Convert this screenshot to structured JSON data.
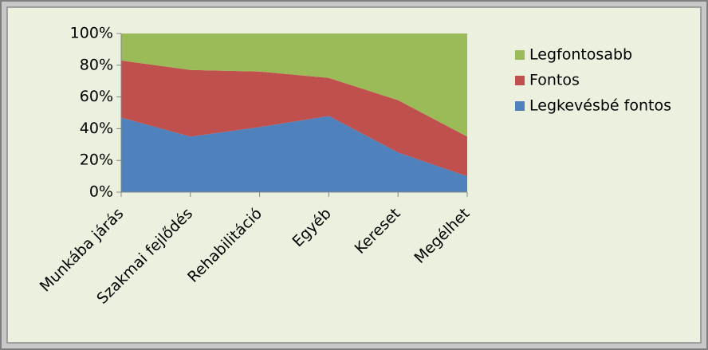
{
  "chart_data": {
    "type": "stacked_area_100",
    "categories": [
      "Munkába járás",
      "Szakmai fejlődés",
      "Rehabilitáció",
      "Egyéb",
      "Kereset",
      "Megélhet"
    ],
    "series": [
      {
        "name": "Legkevésbé fontos",
        "color": "#4f81bd",
        "values": [
          47,
          35,
          41,
          48,
          25,
          10
        ]
      },
      {
        "name": "Fontos",
        "color": "#c0504d",
        "values": [
          36,
          42,
          35,
          24,
          33,
          25
        ]
      },
      {
        "name": "Legfontosabb",
        "color": "#9bbb59",
        "values": [
          17,
          23,
          24,
          28,
          42,
          65
        ]
      }
    ],
    "ylim": [
      0,
      100
    ],
    "yticks": [
      {
        "value": 0,
        "label": "0%"
      },
      {
        "value": 20,
        "label": "20%"
      },
      {
        "value": 40,
        "label": "40%"
      },
      {
        "value": 60,
        "label": "60%"
      },
      {
        "value": 80,
        "label": "80%"
      },
      {
        "value": 100,
        "label": "100%"
      }
    ],
    "legend": "right"
  }
}
